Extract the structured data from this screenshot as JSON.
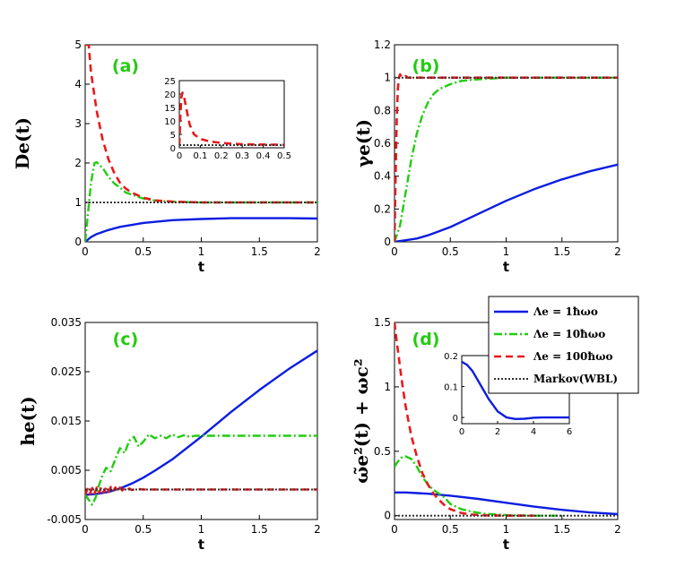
{
  "colors": {
    "weak": "#0b1de0",
    "medium": "#22cc11",
    "strong": "#e8191c",
    "markov": "#333333",
    "panel_label": "#22cc11"
  },
  "legend": {
    "entries": [
      {
        "series": "weak",
        "label": "Λe = 1ħωo",
        "style": "solid"
      },
      {
        "series": "medium",
        "label": "Λe = 10ħωo",
        "style": "dashdot"
      },
      {
        "series": "strong",
        "label": "Λe = 100ħωo",
        "style": "dashed"
      },
      {
        "series": "markov",
        "label": "Markov(WBL)",
        "style": "dotted"
      }
    ]
  },
  "chart_data": [
    {
      "id": "a",
      "type": "line",
      "panel_label": "(a)",
      "xlabel": "t",
      "ylabel": "De(t)",
      "xlim": [
        0,
        2
      ],
      "ylim": [
        0,
        5
      ],
      "xticks": [
        "0",
        "0.5",
        "1",
        "1.5",
        "2"
      ],
      "xtick_values": [
        0,
        0.5,
        1,
        1.5,
        2
      ],
      "yticks": [
        "0",
        "1",
        "2",
        "3",
        "4",
        "5"
      ],
      "ytick_values": [
        0,
        1,
        2,
        3,
        4,
        5
      ],
      "series": [
        {
          "name": "Λe = 1ħωo",
          "key": "weak",
          "x": [
            0,
            0.05,
            0.1,
            0.2,
            0.3,
            0.5,
            0.75,
            1.0,
            1.25,
            1.5,
            1.75,
            2.0
          ],
          "y": [
            0,
            0.12,
            0.2,
            0.3,
            0.38,
            0.48,
            0.55,
            0.58,
            0.6,
            0.6,
            0.6,
            0.59
          ]
        },
        {
          "name": "Λe = 10ħωo",
          "key": "medium",
          "x": [
            0,
            0.02,
            0.05,
            0.08,
            0.1,
            0.12,
            0.15,
            0.2,
            0.25,
            0.3,
            0.35,
            0.4,
            0.5,
            0.6,
            0.75,
            1.0,
            1.5,
            2.0
          ],
          "y": [
            0,
            0.6,
            1.5,
            2.0,
            2.02,
            1.95,
            1.88,
            1.65,
            1.48,
            1.38,
            1.25,
            1.2,
            1.1,
            1.05,
            1.02,
            1.0,
            1.0,
            1.0
          ]
        },
        {
          "name": "Λe = 100ħωo",
          "key": "strong",
          "x": [
            0,
            0.005,
            0.01,
            0.02,
            0.03,
            0.05,
            0.08,
            0.1,
            0.15,
            0.2,
            0.25,
            0.3,
            0.35,
            0.4,
            0.5,
            0.6,
            0.75,
            1.0,
            1.5,
            2.0
          ],
          "y": [
            5,
            5,
            5,
            5,
            5,
            4.3,
            3.7,
            3.3,
            2.6,
            2.1,
            1.75,
            1.5,
            1.35,
            1.25,
            1.12,
            1.05,
            1.02,
            1.0,
            1.0,
            1.0
          ]
        },
        {
          "name": "Markov(WBL)",
          "key": "markov",
          "x": [
            0,
            2
          ],
          "y": [
            1,
            1
          ]
        }
      ],
      "inset": {
        "xlim": [
          0,
          0.5
        ],
        "ylim": [
          0,
          25
        ],
        "xticks": [
          "0",
          "0.1",
          "0.2",
          "0.3",
          "0.4",
          "0.5"
        ],
        "xtick_values": [
          0,
          0.1,
          0.2,
          0.3,
          0.4,
          0.5
        ],
        "yticks": [
          "0",
          "5",
          "10",
          "15",
          "20",
          "25"
        ],
        "ytick_values": [
          0,
          5,
          10,
          15,
          20,
          25
        ],
        "series": [
          {
            "key": "strong",
            "x": [
              0,
              0.005,
              0.01,
              0.015,
              0.02,
              0.03,
              0.04,
              0.05,
              0.07,
              0.1,
              0.15,
              0.2,
              0.3,
              0.5
            ],
            "y": [
              1,
              12,
              19,
              20.5,
              20,
              16,
              12,
              8.5,
              5,
              3.3,
              2.3,
              1.8,
              1.3,
              1.1
            ]
          },
          {
            "key": "markov",
            "x": [
              0,
              0.5
            ],
            "y": [
              1,
              1
            ]
          }
        ]
      }
    },
    {
      "id": "b",
      "type": "line",
      "panel_label": "(b)",
      "xlabel": "t",
      "ylabel": "γe(t)",
      "xlim": [
        0,
        2
      ],
      "ylim": [
        0,
        1.2
      ],
      "xticks": [
        "0",
        "0.5",
        "1",
        "1.5",
        "2"
      ],
      "xtick_values": [
        0,
        0.5,
        1,
        1.5,
        2
      ],
      "yticks": [
        "0",
        "0.2",
        "0.4",
        "0.6",
        "0.8",
        "1",
        "1.2"
      ],
      "ytick_values": [
        0,
        0.2,
        0.4,
        0.6,
        0.8,
        1.0,
        1.2
      ],
      "series": [
        {
          "name": "Λe = 1ħωo",
          "key": "weak",
          "x": [
            0,
            0.1,
            0.2,
            0.3,
            0.5,
            0.75,
            1.0,
            1.25,
            1.5,
            1.75,
            2.0
          ],
          "y": [
            0,
            0.01,
            0.02,
            0.04,
            0.09,
            0.17,
            0.25,
            0.32,
            0.38,
            0.43,
            0.47
          ]
        },
        {
          "name": "Λe = 10ħωo",
          "key": "medium",
          "x": [
            0,
            0.05,
            0.1,
            0.15,
            0.2,
            0.25,
            0.3,
            0.35,
            0.4,
            0.5,
            0.6,
            0.75,
            1.0,
            1.5,
            2.0
          ],
          "y": [
            0,
            0.1,
            0.3,
            0.5,
            0.66,
            0.77,
            0.85,
            0.9,
            0.93,
            0.96,
            0.98,
            0.99,
            1.0,
            1.0,
            1.0
          ]
        },
        {
          "name": "Λe = 100ħωo",
          "key": "strong",
          "x": [
            0,
            0.01,
            0.02,
            0.03,
            0.04,
            0.05,
            0.06,
            0.08,
            0.1,
            0.12,
            0.15,
            0.2,
            0.5,
            1.0,
            2.0
          ],
          "y": [
            0,
            0.4,
            0.75,
            0.93,
            1.0,
            1.02,
            1.01,
            1.0,
            1.01,
            1.0,
            1.0,
            1.0,
            1.0,
            1.0,
            1.0
          ]
        },
        {
          "name": "Markov(WBL)",
          "key": "markov",
          "x": [
            0,
            2
          ],
          "y": [
            1,
            1
          ]
        }
      ]
    },
    {
      "id": "c",
      "type": "line",
      "panel_label": "(c)",
      "xlabel": "t",
      "ylabel": "he(t)",
      "xlim": [
        0,
        2
      ],
      "ylim": [
        -0.005,
        0.035
      ],
      "xticks": [
        "0",
        "0.5",
        "1",
        "1.5",
        "2"
      ],
      "xtick_values": [
        0,
        0.5,
        1,
        1.5,
        2
      ],
      "yticks": [
        "-0.005",
        "0.005",
        "0.015",
        "0.025",
        "0.035"
      ],
      "ytick_values": [
        -0.005,
        0.005,
        0.015,
        0.025,
        0.035
      ],
      "series": [
        {
          "name": "Λe = 1ħωo",
          "key": "weak",
          "x": [
            0,
            0.1,
            0.2,
            0.3,
            0.4,
            0.5,
            0.6,
            0.75,
            1.0,
            1.25,
            1.5,
            1.75,
            2.0
          ],
          "y": [
            0.0,
            0.0002,
            0.0006,
            0.0013,
            0.0023,
            0.0035,
            0.0049,
            0.0072,
            0.0118,
            0.0167,
            0.0213,
            0.0255,
            0.0293
          ]
        },
        {
          "name": "Λe = 10ħωo",
          "key": "medium",
          "x": [
            0,
            0.03,
            0.06,
            0.09,
            0.12,
            0.15,
            0.18,
            0.22,
            0.26,
            0.3,
            0.34,
            0.38,
            0.42,
            0.46,
            0.5,
            0.55,
            0.6,
            0.65,
            0.7,
            0.75,
            0.8,
            0.85,
            0.9,
            0.95,
            1.0,
            1.5,
            2.0
          ],
          "y": [
            0.0,
            -0.001,
            -0.002,
            -0.0005,
            0.002,
            0.004,
            0.0055,
            0.0048,
            0.0073,
            0.0095,
            0.0085,
            0.011,
            0.0118,
            0.0098,
            0.0108,
            0.0123,
            0.0115,
            0.012,
            0.0115,
            0.0123,
            0.0117,
            0.0121,
            0.0118,
            0.012,
            0.012,
            0.012,
            0.012
          ]
        },
        {
          "name": "Λe = 100ħωo",
          "key": "strong",
          "x": [
            0,
            0.02,
            0.04,
            0.06,
            0.08,
            0.1,
            0.12,
            0.14,
            0.16,
            0.18,
            0.2,
            0.22,
            0.24,
            0.26,
            0.28,
            0.3,
            0.32,
            0.34,
            0.36,
            0.38,
            0.4,
            0.45,
            0.5,
            0.6,
            1.0,
            2.0
          ],
          "y": [
            0.0,
            0.0012,
            0.0002,
            0.0014,
            0.0003,
            0.0015,
            0.0004,
            0.0016,
            0.0005,
            0.0015,
            0.0006,
            0.0016,
            0.0007,
            0.0015,
            0.0008,
            0.0015,
            0.0009,
            0.0014,
            0.001,
            0.0013,
            0.001,
            0.0012,
            0.0011,
            0.0011,
            0.0011,
            0.0011
          ]
        },
        {
          "name": "Markov(WBL)",
          "key": "markov",
          "x": [
            0,
            2
          ],
          "y": [
            0.0011,
            0.0011
          ]
        }
      ]
    },
    {
      "id": "d",
      "type": "line",
      "panel_label": "(d)",
      "xlabel": "t",
      "ylabel": "ω̃e²(t) + ωc²",
      "xlim": [
        0,
        2
      ],
      "ylim": [
        -0.03,
        1.5
      ],
      "xticks": [
        "0",
        "0.5",
        "1",
        "1.5",
        "2"
      ],
      "xtick_values": [
        0,
        0.5,
        1,
        1.5,
        2
      ],
      "yticks": [
        "0",
        "0.5",
        "1",
        "1.5"
      ],
      "ytick_values": [
        0,
        0.5,
        1,
        1.5
      ],
      "series": [
        {
          "name": "Λe = 1ħωo",
          "key": "weak",
          "x": [
            0,
            0.1,
            0.2,
            0.3,
            0.5,
            0.75,
            1.0,
            1.25,
            1.5,
            1.75,
            2.0
          ],
          "y": [
            0.18,
            0.18,
            0.175,
            0.17,
            0.155,
            0.13,
            0.1,
            0.07,
            0.045,
            0.025,
            0.012
          ]
        },
        {
          "name": "Λe = 10ħωo",
          "key": "medium",
          "x": [
            0,
            0.03,
            0.06,
            0.1,
            0.15,
            0.2,
            0.25,
            0.3,
            0.35,
            0.4,
            0.45,
            0.5,
            0.6,
            0.7,
            0.8,
            1.0,
            1.25,
            1.5
          ],
          "y": [
            0.38,
            0.42,
            0.45,
            0.46,
            0.44,
            0.38,
            0.3,
            0.24,
            0.2,
            0.17,
            0.14,
            0.09,
            0.05,
            0.03,
            0.015,
            0.005,
            0.0,
            0.0
          ]
        },
        {
          "name": "Λe = 100ħωo",
          "key": "strong",
          "x": [
            0,
            0.01,
            0.02,
            0.04,
            0.06,
            0.08,
            0.1,
            0.15,
            0.2,
            0.25,
            0.3,
            0.35,
            0.4,
            0.45,
            0.5,
            0.6,
            0.7,
            0.8,
            1.0,
            1.25
          ],
          "y": [
            1.5,
            1.43,
            1.35,
            1.22,
            1.08,
            0.96,
            0.85,
            0.62,
            0.46,
            0.33,
            0.24,
            0.17,
            0.12,
            0.08,
            0.05,
            0.02,
            0.008,
            0.003,
            0.0,
            0.0
          ]
        },
        {
          "name": "Markov(WBL)",
          "key": "markov",
          "x": [
            0,
            2
          ],
          "y": [
            0,
            0
          ]
        }
      ],
      "inset": {
        "xlim": [
          0,
          6
        ],
        "ylim": [
          -0.02,
          0.2
        ],
        "xticks": [
          "0",
          "2",
          "4",
          "6"
        ],
        "xtick_values": [
          0,
          2,
          4,
          6
        ],
        "yticks": [
          "0",
          "0.1",
          "0.2"
        ],
        "ytick_values": [
          0,
          0.1,
          0.2
        ],
        "series": [
          {
            "key": "weak",
            "x": [
              0,
              0.3,
              0.6,
              1.0,
              1.5,
              2.0,
              2.5,
              3.0,
              3.5,
              4.0,
              4.5,
              5.0,
              5.5,
              6.0
            ],
            "y": [
              0.18,
              0.17,
              0.15,
              0.11,
              0.06,
              0.02,
              0.0,
              -0.005,
              -0.004,
              -0.001,
              0.0,
              0.0,
              0.0,
              0.0
            ]
          }
        ]
      }
    }
  ]
}
